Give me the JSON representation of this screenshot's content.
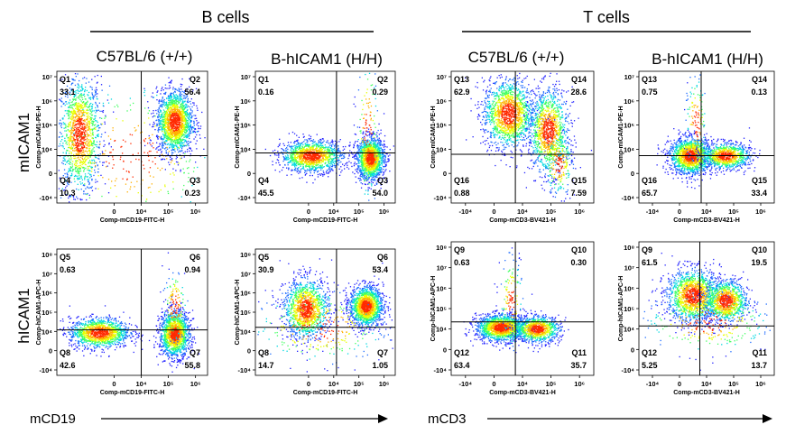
{
  "group_headers": [
    "B cells",
    "T cells"
  ],
  "column_headers": [
    "C57BL/6 (+/+)",
    "B-hICAM1 (H/H)",
    "C57BL/6 (+/+)",
    "B-hICAM1 (H/H)"
  ],
  "row_labels": [
    "mICAM1",
    "hICAM1"
  ],
  "bottom_labels": [
    "mCD19",
    "mCD3"
  ],
  "y_tick_labels": [
    "10⁷",
    "10⁶",
    "10⁵",
    "10⁴",
    "0",
    "-10⁴"
  ],
  "y_tick_labels_hicam1": [
    "10⁸",
    "10⁷",
    "10⁶",
    "10⁵",
    "10⁴",
    "0",
    "-10⁴"
  ],
  "x_tick_labels_b": [
    "0",
    "10⁴",
    "10⁵",
    "10⁶"
  ],
  "x_tick_labels_t": [
    "-10⁴",
    "0",
    "10⁴",
    "10⁵",
    "10⁶"
  ],
  "colors": {
    "density_low": "#1a1aff",
    "density_mid": "#00e0c0",
    "density_high": "#ffe000",
    "density_peak": "#ff2000",
    "gate_line": "#000000"
  },
  "chart_data": [
    {
      "type": "scatter",
      "subtype": "flow-cytometry-quadrant",
      "population": "B cells",
      "strain": "C57BL/6 (+/+)",
      "xlabel": "Comp-mCD19-FITC-H",
      "ylabel": "Comp-mICAM1-PE-H",
      "quadrants": [
        {
          "name": "Q1",
          "value": "33.1"
        },
        {
          "name": "Q2",
          "value": "56.4"
        },
        {
          "name": "Q3",
          "value": "0.23"
        },
        {
          "name": "Q4",
          "value": "10.3"
        }
      ],
      "clusters": [
        {
          "x": 0.15,
          "y": 0.52,
          "sx": 0.07,
          "sy": 0.22,
          "n": 1400
        },
        {
          "x": 0.78,
          "y": 0.62,
          "sx": 0.06,
          "sy": 0.12,
          "n": 1700
        },
        {
          "x": 0.5,
          "y": 0.35,
          "sx": 0.3,
          "sy": 0.3,
          "n": 350
        }
      ]
    },
    {
      "type": "scatter",
      "subtype": "flow-cytometry-quadrant",
      "population": "B cells",
      "strain": "B-hICAM1 (H/H)",
      "xlabel": "Comp-mCD19-FITC-H",
      "ylabel": "Comp-mICAM1-PE-H",
      "quadrants": [
        {
          "name": "Q1",
          "value": "0.16"
        },
        {
          "name": "Q2",
          "value": "0.29"
        },
        {
          "name": "Q3",
          "value": "54.0"
        },
        {
          "name": "Q4",
          "value": "45.5"
        }
      ],
      "clusters": [
        {
          "x": 0.4,
          "y": 0.36,
          "sx": 0.11,
          "sy": 0.06,
          "n": 1300
        },
        {
          "x": 0.82,
          "y": 0.34,
          "sx": 0.05,
          "sy": 0.08,
          "n": 1500
        },
        {
          "x": 0.8,
          "y": 0.55,
          "sx": 0.04,
          "sy": 0.3,
          "n": 180
        }
      ]
    },
    {
      "type": "scatter",
      "subtype": "flow-cytometry-quadrant",
      "population": "T cells",
      "strain": "C57BL/6 (+/+)",
      "xlabel": "Comp-mCD3-BV421-H",
      "ylabel": "Comp-mICAM1-PE-H",
      "quadrants": [
        {
          "name": "Q13",
          "value": "62.9"
        },
        {
          "name": "Q14",
          "value": "28.6"
        },
        {
          "name": "Q15",
          "value": "7.59"
        },
        {
          "name": "Q16",
          "value": "0.88"
        }
      ],
      "clusters": [
        {
          "x": 0.4,
          "y": 0.68,
          "sx": 0.09,
          "sy": 0.13,
          "n": 1500
        },
        {
          "x": 0.68,
          "y": 0.55,
          "sx": 0.07,
          "sy": 0.16,
          "n": 1200
        },
        {
          "x": 0.75,
          "y": 0.3,
          "sx": 0.05,
          "sy": 0.12,
          "n": 250
        }
      ]
    },
    {
      "type": "scatter",
      "subtype": "flow-cytometry-quadrant",
      "population": "T cells",
      "strain": "B-hICAM1 (H/H)",
      "xlabel": "Comp-mCD3-BV421-H",
      "ylabel": "Comp-mICAM1-PE-H",
      "quadrants": [
        {
          "name": "Q13",
          "value": "0.75"
        },
        {
          "name": "Q14",
          "value": "0.13"
        },
        {
          "name": "Q15",
          "value": "33.4"
        },
        {
          "name": "Q16",
          "value": "65.7"
        }
      ],
      "clusters": [
        {
          "x": 0.38,
          "y": 0.36,
          "sx": 0.08,
          "sy": 0.07,
          "n": 1500
        },
        {
          "x": 0.64,
          "y": 0.36,
          "sx": 0.09,
          "sy": 0.05,
          "n": 900
        },
        {
          "x": 0.42,
          "y": 0.6,
          "sx": 0.04,
          "sy": 0.2,
          "n": 150
        }
      ]
    },
    {
      "type": "scatter",
      "subtype": "flow-cytometry-quadrant",
      "population": "B cells",
      "strain": "C57BL/6 (+/+)",
      "xlabel": "Comp-mCD19-FITC-H",
      "ylabel": "Comp-hICAM1-APC-H",
      "quadrants": [
        {
          "name": "Q5",
          "value": "0.63"
        },
        {
          "name": "Q6",
          "value": "0.94"
        },
        {
          "name": "Q7",
          "value": "55.8"
        },
        {
          "name": "Q8",
          "value": "42.6"
        }
      ],
      "clusters": [
        {
          "x": 0.28,
          "y": 0.34,
          "sx": 0.1,
          "sy": 0.06,
          "n": 1300
        },
        {
          "x": 0.78,
          "y": 0.33,
          "sx": 0.05,
          "sy": 0.09,
          "n": 1500
        },
        {
          "x": 0.78,
          "y": 0.55,
          "sx": 0.04,
          "sy": 0.15,
          "n": 150
        }
      ]
    },
    {
      "type": "scatter",
      "subtype": "flow-cytometry-quadrant",
      "population": "B cells",
      "strain": "B-hICAM1 (H/H)",
      "xlabel": "Comp-mCD19-FITC-H",
      "ylabel": "Comp-hICAM1-APC-H",
      "quadrants": [
        {
          "name": "Q5",
          "value": "30.9"
        },
        {
          "name": "Q6",
          "value": "53.4"
        },
        {
          "name": "Q7",
          "value": "1.05"
        },
        {
          "name": "Q8",
          "value": "14.7"
        }
      ],
      "clusters": [
        {
          "x": 0.36,
          "y": 0.53,
          "sx": 0.08,
          "sy": 0.12,
          "n": 1300
        },
        {
          "x": 0.79,
          "y": 0.55,
          "sx": 0.06,
          "sy": 0.08,
          "n": 1500
        },
        {
          "x": 0.45,
          "y": 0.38,
          "sx": 0.25,
          "sy": 0.15,
          "n": 300
        }
      ]
    },
    {
      "type": "scatter",
      "subtype": "flow-cytometry-quadrant",
      "population": "T cells",
      "strain": "C57BL/6 (+/+)",
      "xlabel": "Comp-mCD3-BV421-H",
      "ylabel": "Comp-hICAM1-APC-H",
      "quadrants": [
        {
          "name": "Q9",
          "value": "0.63"
        },
        {
          "name": "Q10",
          "value": "0.30"
        },
        {
          "name": "Q11",
          "value": "35.7"
        },
        {
          "name": "Q12",
          "value": "63.4"
        }
      ],
      "clusters": [
        {
          "x": 0.35,
          "y": 0.36,
          "sx": 0.09,
          "sy": 0.05,
          "n": 1500
        },
        {
          "x": 0.6,
          "y": 0.35,
          "sx": 0.08,
          "sy": 0.05,
          "n": 900
        },
        {
          "x": 0.42,
          "y": 0.55,
          "sx": 0.04,
          "sy": 0.18,
          "n": 150
        }
      ]
    },
    {
      "type": "scatter",
      "subtype": "flow-cytometry-quadrant",
      "population": "T cells",
      "strain": "B-hICAM1 (H/H)",
      "xlabel": "Comp-mCD3-BV421-H",
      "ylabel": "Comp-hICAM1-APC-H",
      "quadrants": [
        {
          "name": "Q9",
          "value": "61.5"
        },
        {
          "name": "Q10",
          "value": "19.5"
        },
        {
          "name": "Q11",
          "value": "13.7"
        },
        {
          "name": "Q12",
          "value": "5.25"
        }
      ],
      "clusters": [
        {
          "x": 0.4,
          "y": 0.6,
          "sx": 0.1,
          "sy": 0.1,
          "n": 1500
        },
        {
          "x": 0.64,
          "y": 0.56,
          "sx": 0.08,
          "sy": 0.08,
          "n": 1000
        },
        {
          "x": 0.5,
          "y": 0.4,
          "sx": 0.25,
          "sy": 0.12,
          "n": 300
        }
      ]
    }
  ]
}
